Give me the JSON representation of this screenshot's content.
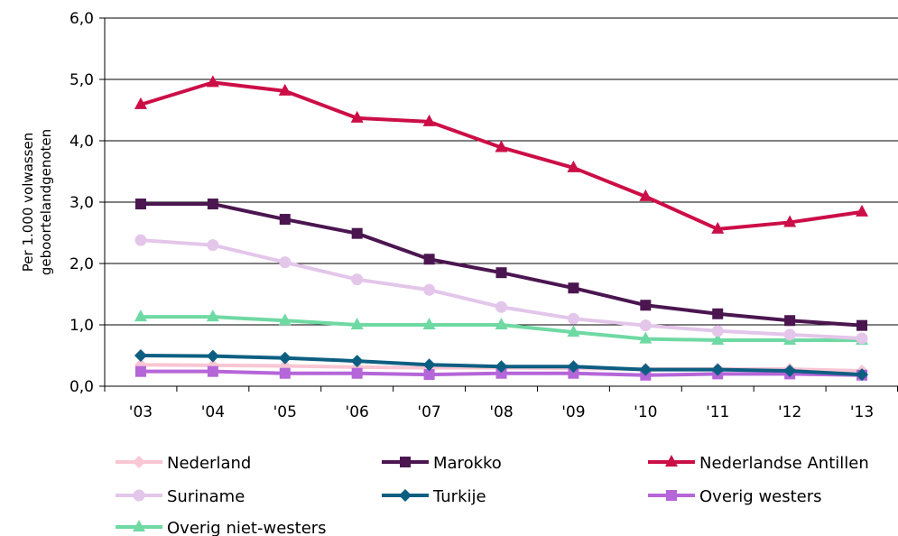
{
  "chart_data": {
    "type": "line",
    "title": "",
    "xlabel": "",
    "ylabel_lines": [
      "Per 1.000 volwassen",
      "geboortelandgenoten"
    ],
    "categories": [
      "'03",
      "'04",
      "'05",
      "'06",
      "'07",
      "'08",
      "'09",
      "'10",
      "'11",
      "'12",
      "'13"
    ],
    "yticks": [
      "0,0",
      "1,0",
      "2,0",
      "3,0",
      "4,0",
      "5,0",
      "6,0"
    ],
    "ylim": [
      0,
      6
    ],
    "grid": true,
    "legend_position": "bottom",
    "series": [
      {
        "name": "Nederland",
        "color": "#f9c6d3",
        "marker": "diamond",
        "values": [
          0.35,
          0.34,
          0.33,
          0.31,
          0.3,
          0.3,
          0.29,
          0.28,
          0.28,
          0.28,
          0.25
        ]
      },
      {
        "name": "Marokko",
        "color": "#4b1650",
        "marker": "square",
        "values": [
          2.97,
          2.97,
          2.72,
          2.49,
          2.07,
          1.85,
          1.6,
          1.32,
          1.18,
          1.07,
          0.99
        ]
      },
      {
        "name": "Nederlandse Antillen",
        "color": "#cc0e47",
        "marker": "triangle",
        "values": [
          4.59,
          4.95,
          4.81,
          4.37,
          4.31,
          3.89,
          3.56,
          3.09,
          2.56,
          2.67,
          2.84
        ]
      },
      {
        "name": "Suriname",
        "color": "#e3c6ea",
        "marker": "circle",
        "values": [
          2.38,
          2.3,
          2.02,
          1.74,
          1.57,
          1.29,
          1.1,
          0.99,
          0.9,
          0.84,
          0.78
        ]
      },
      {
        "name": "Turkije",
        "color": "#0d5f82",
        "marker": "diamond",
        "values": [
          0.5,
          0.49,
          0.46,
          0.41,
          0.35,
          0.32,
          0.32,
          0.27,
          0.27,
          0.25,
          0.19
        ]
      },
      {
        "name": "Overig westers",
        "color": "#b566d8",
        "marker": "square",
        "values": [
          0.24,
          0.24,
          0.21,
          0.21,
          0.19,
          0.21,
          0.21,
          0.18,
          0.2,
          0.2,
          0.18
        ]
      },
      {
        "name": "Overig niet-westers",
        "color": "#6fd9a3",
        "marker": "triangle",
        "values": [
          1.13,
          1.13,
          1.07,
          1.0,
          1.0,
          1.0,
          0.88,
          0.77,
          0.75,
          0.75,
          0.75
        ]
      }
    ]
  }
}
